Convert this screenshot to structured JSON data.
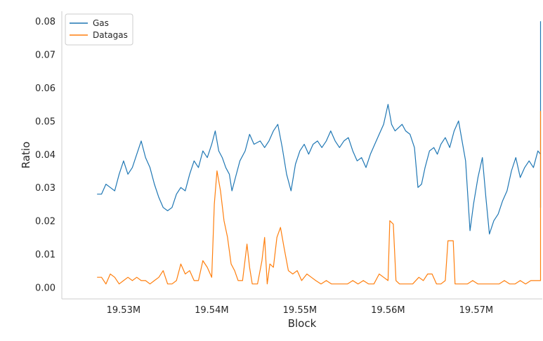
{
  "chart_data": {
    "type": "line",
    "xlabel": "Block",
    "ylabel": "Ratio",
    "xlim": [
      19523000,
      19577500
    ],
    "ylim": [
      -0.0035,
      0.083
    ],
    "x_ticks": [
      19530000,
      19540000,
      19550000,
      19560000,
      19570000
    ],
    "x_tick_labels": [
      "19.53M",
      "19.54M",
      "19.55M",
      "19.56M",
      "19.57M"
    ],
    "y_ticks": [
      0.0,
      0.01,
      0.02,
      0.03,
      0.04,
      0.05,
      0.06,
      0.07,
      0.08
    ],
    "y_tick_labels": [
      "0.00",
      "0.01",
      "0.02",
      "0.03",
      "0.04",
      "0.05",
      "0.06",
      "0.07",
      "0.08"
    ],
    "legend_position": "top-left",
    "grid": false,
    "series": [
      {
        "name": "Gas",
        "color": "#1f77b4",
        "points": [
          [
            19527000,
            0.028
          ],
          [
            19527500,
            0.028
          ],
          [
            19528000,
            0.031
          ],
          [
            19528500,
            0.03
          ],
          [
            19529000,
            0.029
          ],
          [
            19529500,
            0.034
          ],
          [
            19530000,
            0.038
          ],
          [
            19530500,
            0.034
          ],
          [
            19531000,
            0.036
          ],
          [
            19531500,
            0.04
          ],
          [
            19532000,
            0.044
          ],
          [
            19532500,
            0.039
          ],
          [
            19533000,
            0.036
          ],
          [
            19533500,
            0.031
          ],
          [
            19534000,
            0.027
          ],
          [
            19534500,
            0.024
          ],
          [
            19535000,
            0.023
          ],
          [
            19535500,
            0.024
          ],
          [
            19536000,
            0.028
          ],
          [
            19536500,
            0.03
          ],
          [
            19537000,
            0.029
          ],
          [
            19537500,
            0.034
          ],
          [
            19538000,
            0.038
          ],
          [
            19538500,
            0.036
          ],
          [
            19539000,
            0.041
          ],
          [
            19539500,
            0.039
          ],
          [
            19540000,
            0.043
          ],
          [
            19540400,
            0.047
          ],
          [
            19540800,
            0.041
          ],
          [
            19541200,
            0.039
          ],
          [
            19541600,
            0.036
          ],
          [
            19542000,
            0.034
          ],
          [
            19542300,
            0.029
          ],
          [
            19542700,
            0.033
          ],
          [
            19543200,
            0.038
          ],
          [
            19543800,
            0.041
          ],
          [
            19544300,
            0.046
          ],
          [
            19544800,
            0.043
          ],
          [
            19545500,
            0.044
          ],
          [
            19546000,
            0.042
          ],
          [
            19546500,
            0.044
          ],
          [
            19547000,
            0.047
          ],
          [
            19547500,
            0.049
          ],
          [
            19548000,
            0.042
          ],
          [
            19548500,
            0.034
          ],
          [
            19549000,
            0.029
          ],
          [
            19549500,
            0.037
          ],
          [
            19550000,
            0.041
          ],
          [
            19550500,
            0.043
          ],
          [
            19551000,
            0.04
          ],
          [
            19551500,
            0.043
          ],
          [
            19552000,
            0.044
          ],
          [
            19552500,
            0.042
          ],
          [
            19553000,
            0.044
          ],
          [
            19553500,
            0.047
          ],
          [
            19554000,
            0.044
          ],
          [
            19554500,
            0.042
          ],
          [
            19555000,
            0.044
          ],
          [
            19555500,
            0.045
          ],
          [
            19556000,
            0.041
          ],
          [
            19556500,
            0.038
          ],
          [
            19557000,
            0.039
          ],
          [
            19557500,
            0.036
          ],
          [
            19558000,
            0.04
          ],
          [
            19558500,
            0.043
          ],
          [
            19559000,
            0.046
          ],
          [
            19559500,
            0.049
          ],
          [
            19560000,
            0.055
          ],
          [
            19560400,
            0.049
          ],
          [
            19560800,
            0.047
          ],
          [
            19561200,
            0.048
          ],
          [
            19561600,
            0.049
          ],
          [
            19562000,
            0.047
          ],
          [
            19562500,
            0.046
          ],
          [
            19563000,
            0.042
          ],
          [
            19563400,
            0.03
          ],
          [
            19563800,
            0.031
          ],
          [
            19564200,
            0.036
          ],
          [
            19564700,
            0.041
          ],
          [
            19565200,
            0.042
          ],
          [
            19565600,
            0.04
          ],
          [
            19566000,
            0.043
          ],
          [
            19566500,
            0.045
          ],
          [
            19567000,
            0.042
          ],
          [
            19567500,
            0.047
          ],
          [
            19568000,
            0.05
          ],
          [
            19568400,
            0.044
          ],
          [
            19568800,
            0.038
          ],
          [
            19569300,
            0.017
          ],
          [
            19569700,
            0.025
          ],
          [
            19570200,
            0.033
          ],
          [
            19570700,
            0.039
          ],
          [
            19571100,
            0.027
          ],
          [
            19571500,
            0.016
          ],
          [
            19572000,
            0.02
          ],
          [
            19572500,
            0.022
          ],
          [
            19573000,
            0.026
          ],
          [
            19573500,
            0.029
          ],
          [
            19574000,
            0.035
          ],
          [
            19574500,
            0.039
          ],
          [
            19575000,
            0.033
          ],
          [
            19575500,
            0.036
          ],
          [
            19576000,
            0.038
          ],
          [
            19576500,
            0.036
          ],
          [
            19577000,
            0.041
          ],
          [
            19577500,
            0.04
          ],
          [
            19578000,
            0.041
          ],
          [
            19578500,
            0.033
          ],
          [
            19579000,
            0.026
          ],
          [
            19579400,
            0.024
          ],
          [
            19579800,
            0.025
          ],
          [
            19580000,
            0.076
          ],
          [
            19580200,
            0.08
          ]
        ]
      },
      {
        "name": "Datagas",
        "color": "#ff7f0e",
        "points": [
          [
            19527000,
            0.003
          ],
          [
            19527500,
            0.003
          ],
          [
            19528000,
            0.001
          ],
          [
            19528500,
            0.004
          ],
          [
            19529000,
            0.003
          ],
          [
            19529500,
            0.001
          ],
          [
            19530000,
            0.002
          ],
          [
            19530500,
            0.003
          ],
          [
            19531000,
            0.002
          ],
          [
            19531500,
            0.003
          ],
          [
            19532000,
            0.002
          ],
          [
            19532500,
            0.002
          ],
          [
            19533000,
            0.001
          ],
          [
            19533500,
            0.002
          ],
          [
            19534000,
            0.003
          ],
          [
            19534500,
            0.005
          ],
          [
            19535000,
            0.001
          ],
          [
            19535500,
            0.001
          ],
          [
            19536000,
            0.002
          ],
          [
            19536500,
            0.007
          ],
          [
            19537000,
            0.004
          ],
          [
            19537500,
            0.005
          ],
          [
            19538000,
            0.002
          ],
          [
            19538500,
            0.002
          ],
          [
            19539000,
            0.008
          ],
          [
            19539500,
            0.006
          ],
          [
            19540000,
            0.003
          ],
          [
            19540300,
            0.025
          ],
          [
            19540600,
            0.035
          ],
          [
            19541000,
            0.029
          ],
          [
            19541400,
            0.02
          ],
          [
            19541800,
            0.015
          ],
          [
            19542200,
            0.007
          ],
          [
            19542600,
            0.005
          ],
          [
            19543000,
            0.002
          ],
          [
            19543500,
            0.002
          ],
          [
            19544000,
            0.013
          ],
          [
            19544300,
            0.006
          ],
          [
            19544600,
            0.001
          ],
          [
            19545200,
            0.001
          ],
          [
            19545700,
            0.008
          ],
          [
            19546000,
            0.015
          ],
          [
            19546300,
            0.001
          ],
          [
            19546600,
            0.007
          ],
          [
            19547000,
            0.006
          ],
          [
            19547400,
            0.015
          ],
          [
            19547800,
            0.018
          ],
          [
            19548200,
            0.012
          ],
          [
            19548700,
            0.005
          ],
          [
            19549200,
            0.004
          ],
          [
            19549700,
            0.005
          ],
          [
            19550200,
            0.002
          ],
          [
            19550800,
            0.004
          ],
          [
            19551300,
            0.003
          ],
          [
            19551800,
            0.002
          ],
          [
            19552400,
            0.001
          ],
          [
            19553000,
            0.002
          ],
          [
            19553600,
            0.001
          ],
          [
            19554200,
            0.001
          ],
          [
            19554800,
            0.001
          ],
          [
            19555400,
            0.001
          ],
          [
            19556000,
            0.002
          ],
          [
            19556600,
            0.001
          ],
          [
            19557200,
            0.002
          ],
          [
            19557800,
            0.001
          ],
          [
            19558400,
            0.001
          ],
          [
            19559000,
            0.004
          ],
          [
            19559500,
            0.003
          ],
          [
            19560000,
            0.002
          ],
          [
            19560200,
            0.02
          ],
          [
            19560600,
            0.019
          ],
          [
            19560900,
            0.002
          ],
          [
            19561300,
            0.001
          ],
          [
            19562000,
            0.001
          ],
          [
            19562800,
            0.001
          ],
          [
            19563500,
            0.003
          ],
          [
            19564000,
            0.002
          ],
          [
            19564500,
            0.004
          ],
          [
            19565000,
            0.004
          ],
          [
            19565500,
            0.001
          ],
          [
            19566000,
            0.001
          ],
          [
            19566500,
            0.002
          ],
          [
            19566800,
            0.014
          ],
          [
            19567400,
            0.014
          ],
          [
            19567600,
            0.001
          ],
          [
            19568300,
            0.001
          ],
          [
            19569000,
            0.001
          ],
          [
            19569600,
            0.002
          ],
          [
            19570200,
            0.001
          ],
          [
            19570800,
            0.001
          ],
          [
            19571400,
            0.001
          ],
          [
            19572000,
            0.001
          ],
          [
            19572600,
            0.001
          ],
          [
            19573200,
            0.002
          ],
          [
            19573800,
            0.001
          ],
          [
            19574400,
            0.001
          ],
          [
            19575000,
            0.002
          ],
          [
            19575600,
            0.001
          ],
          [
            19576200,
            0.002
          ],
          [
            19576800,
            0.002
          ],
          [
            19577400,
            0.002
          ],
          [
            19578000,
            0.003
          ],
          [
            19578600,
            0.003
          ],
          [
            19579200,
            0.005
          ],
          [
            19579700,
            0.01
          ],
          [
            19580000,
            0.02
          ],
          [
            19580200,
            0.053
          ]
        ]
      }
    ]
  }
}
